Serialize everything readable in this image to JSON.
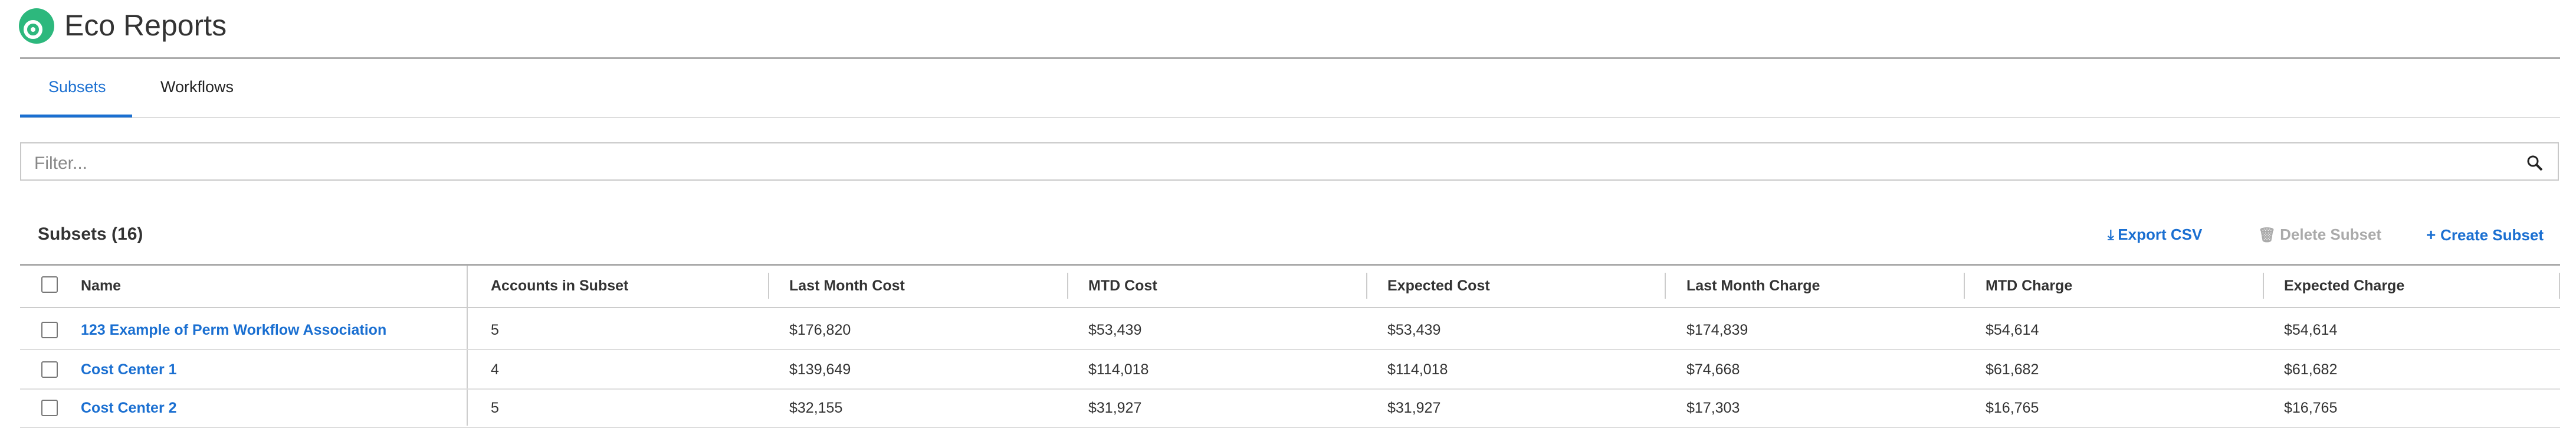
{
  "header": {
    "title": "Eco Reports"
  },
  "tabs": [
    "Subsets",
    "Workflows"
  ],
  "filter": {
    "placeholder": "Filter..."
  },
  "section": {
    "title": "Subsets (16)",
    "actions": [
      "Export CSV",
      "Delete Subset",
      "Create Subset"
    ]
  },
  "table": {
    "columns": [
      "Name",
      "Accounts in Subset",
      "Last Month Cost",
      "MTD Cost",
      "Expected Cost",
      "Last Month Charge",
      "MTD Charge",
      "Expected Charge"
    ],
    "rows": [
      [
        "123 Example of Perm Workflow Association",
        "5",
        "$176,820",
        "$53,439",
        "$53,439",
        "$174,839",
        "$54,614",
        "$54,614"
      ],
      [
        "Cost Center 1",
        "4",
        "$139,649",
        "$114,018",
        "$114,018",
        "$74,668",
        "$61,682",
        "$61,682"
      ],
      [
        "Cost Center 2",
        "5",
        "$32,155",
        "$31,927",
        "$31,927",
        "$17,303",
        "$16,765",
        "$16,765"
      ]
    ]
  }
}
